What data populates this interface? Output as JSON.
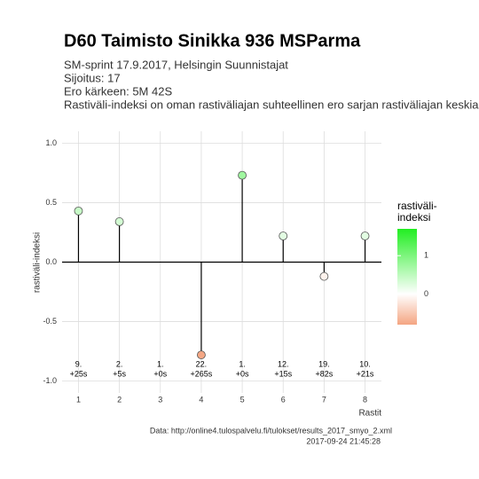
{
  "chart_data": {
    "type": "lollipop",
    "title": "D60 Taimisto Sinikka 936 MSParma",
    "subtitle": [
      "SM-sprint 17.9.2017, Helsingin Suunnistajat",
      "Sijoitus: 17",
      "Ero kärkeen: 5M 42S",
      "Rastiväli-indeksi on oman rastiväliajan suhteellinen ero sarjan rastiväliajan keskiar"
    ],
    "y_label": "rastiväli-indeksi",
    "x_label": "Rastit",
    "x": [
      1,
      2,
      3,
      4,
      5,
      6,
      7,
      8
    ],
    "values": [
      0.43,
      0.34,
      null,
      -0.78,
      0.73,
      0.22,
      -0.12,
      0.22
    ],
    "rank_labels": [
      "9.",
      "2.",
      "1.",
      "22.",
      "1.",
      "12.",
      "19.",
      "10."
    ],
    "diff_labels": [
      "+25s",
      "+5s",
      "+0s",
      "+265s",
      "+0s",
      "+15s",
      "+82s",
      "+21s"
    ],
    "xlim": [
      0.6,
      8.4
    ],
    "xticks": [
      1,
      2,
      3,
      4,
      5,
      6,
      7,
      8
    ],
    "ylim": [
      -1.1,
      1.1
    ],
    "yticks": [
      {
        "value": -1,
        "label": "-1.0"
      },
      {
        "value": -0.5,
        "label": "-0.5"
      },
      {
        "value": 0,
        "label": "0.0"
      },
      {
        "value": 0.5,
        "label": "0.5"
      },
      {
        "value": 1,
        "label": "1.0"
      }
    ],
    "grid": true,
    "legend_title": [
      "rastiväli-",
      "indeksi"
    ],
    "color_low": "#f4a582",
    "color_mid": "#ffffff",
    "color_high": "#22ee22",
    "colorlim": [
      -0.8,
      1.7
    ],
    "colorticks": [
      0,
      1
    ],
    "caption": [
      "Data: http://online4.tulospalvelu.fi/tulokset/results_2017_smyo_2.xml",
      "2017-09-24 21:45:28"
    ]
  }
}
